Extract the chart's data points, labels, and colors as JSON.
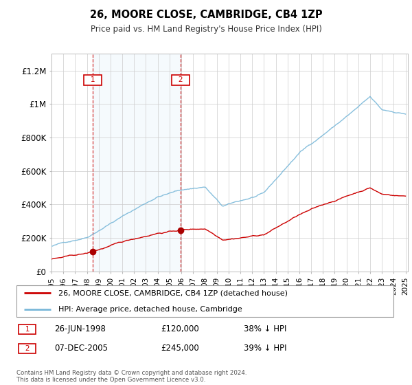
{
  "title": "26, MOORE CLOSE, CAMBRIDGE, CB4 1ZP",
  "subtitle": "Price paid vs. HM Land Registry's House Price Index (HPI)",
  "background_color": "#ffffff",
  "grid_color": "#cccccc",
  "hpi_color": "#7ab8d9",
  "price_color": "#cc0000",
  "shade_color": "#ddeeff",
  "t1_year": 1998.5,
  "t2_year": 2005.92,
  "t1_price": 120000,
  "t2_price": 245000,
  "transaction1": {
    "date": "26-JUN-1998",
    "price": 120000,
    "pct": "38% ↓ HPI"
  },
  "transaction2": {
    "date": "07-DEC-2005",
    "price": 245000,
    "pct": "39% ↓ HPI"
  },
  "legend_price_label": "26, MOORE CLOSE, CAMBRIDGE, CB4 1ZP (detached house)",
  "legend_hpi_label": "HPI: Average price, detached house, Cambridge",
  "footnote": "Contains HM Land Registry data © Crown copyright and database right 2024.\nThis data is licensed under the Open Government Licence v3.0.",
  "ylim": [
    0,
    1300000
  ],
  "yticks": [
    0,
    200000,
    400000,
    600000,
    800000,
    1000000,
    1200000
  ],
  "ytick_labels": [
    "£0",
    "£200K",
    "£400K",
    "£600K",
    "£800K",
    "£1M",
    "£1.2M"
  ],
  "x_start_year": 1995,
  "x_end_year": 2025
}
